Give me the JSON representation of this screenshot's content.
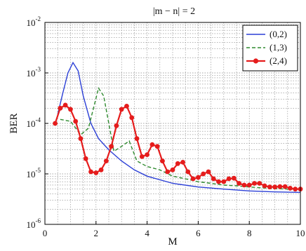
{
  "chart_data": {
    "type": "line",
    "title": "|m − n| = 2",
    "xlabel": "M",
    "ylabel": "BER",
    "xlim": [
      0,
      10
    ],
    "ylim": [
      1e-06,
      0.01
    ],
    "yscale": "log",
    "grid": true,
    "legend_position": "top-right",
    "x_ticks": [
      "0",
      "2",
      "4",
      "6",
      "8",
      "10"
    ],
    "y_ticks": [
      {
        "base": "10",
        "exp": "-6",
        "value": 1e-06
      },
      {
        "base": "10",
        "exp": "-5",
        "value": 1e-05
      },
      {
        "base": "10",
        "exp": "-4",
        "value": 0.0001
      },
      {
        "base": "10",
        "exp": "-3",
        "value": 0.001
      },
      {
        "base": "10",
        "exp": "-2",
        "value": 0.01
      }
    ],
    "series": [
      {
        "name": "(0,2)",
        "color": "#2b3fd6",
        "style": "solid",
        "x": [
          0.5,
          0.7,
          0.9,
          1.1,
          1.3,
          1.5,
          1.8,
          2.1,
          2.5,
          3.0,
          3.5,
          4.0,
          5.0,
          6.0,
          7.0,
          8.0,
          9.0,
          10.0
        ],
        "y": [
          0.00015,
          0.0004,
          0.001,
          0.0016,
          0.0011,
          0.00035,
          0.0001,
          5e-05,
          3e-05,
          1.8e-05,
          1.2e-05,
          9e-06,
          6.5e-06,
          5.5e-06,
          5e-06,
          4.6e-06,
          4.4e-06,
          4.3e-06
        ]
      },
      {
        "name": "(1,3)",
        "color": "#2f8a2f",
        "style": "dashed",
        "x": [
          0.6,
          1.0,
          1.4,
          1.7,
          1.9,
          2.1,
          2.3,
          2.5,
          2.7,
          3.0,
          3.3,
          3.6,
          4.0,
          4.5,
          5.0,
          5.5,
          6.0,
          6.5,
          7.0,
          7.5,
          8.0,
          8.5,
          9.0,
          9.5,
          10.0
        ],
        "y": [
          0.00012,
          0.00011,
          6e-05,
          8e-05,
          0.0002,
          0.0005,
          0.00035,
          0.0001,
          2.8e-05,
          3.5e-05,
          4.5e-05,
          1.8e-05,
          1.4e-05,
          1.2e-05,
          9e-06,
          8e-06,
          7e-06,
          6.5e-06,
          6e-06,
          5.8e-06,
          5.5e-06,
          5.3e-06,
          5.1e-06,
          5e-06,
          5e-06
        ]
      },
      {
        "name": "(2,4)",
        "color": "#e51c1c",
        "style": "solid-marker",
        "x": [
          0.4,
          0.6,
          0.8,
          1.0,
          1.2,
          1.4,
          1.6,
          1.8,
          2.0,
          2.2,
          2.4,
          2.6,
          2.8,
          3.0,
          3.2,
          3.4,
          3.6,
          3.8,
          4.0,
          4.2,
          4.4,
          4.6,
          4.8,
          5.0,
          5.2,
          5.4,
          5.6,
          5.8,
          6.0,
          6.2,
          6.4,
          6.6,
          6.8,
          7.0,
          7.2,
          7.4,
          7.6,
          7.8,
          8.0,
          8.2,
          8.4,
          8.6,
          8.8,
          9.0,
          9.2,
          9.4,
          9.6,
          9.8,
          10.0
        ],
        "y": [
          0.0001,
          0.0002,
          0.00023,
          0.00019,
          0.00011,
          5e-05,
          2e-05,
          1.1e-05,
          1.05e-05,
          1.2e-05,
          1.8e-05,
          3.5e-05,
          9e-05,
          0.00019,
          0.00022,
          0.00013,
          5e-05,
          2.2e-05,
          2.4e-05,
          3.8e-05,
          3.5e-05,
          1.8e-05,
          1.1e-05,
          1.2e-05,
          1.6e-05,
          1.7e-05,
          1.1e-05,
          8e-06,
          8.5e-06,
          1e-05,
          1.1e-05,
          8e-06,
          7e-06,
          7e-06,
          8e-06,
          8.2e-06,
          6.5e-06,
          6e-06,
          6e-06,
          6.5e-06,
          6.5e-06,
          5.8e-06,
          5.5e-06,
          5.5e-06,
          5.6e-06,
          5.6e-06,
          5.2e-06,
          5e-06,
          5e-06
        ]
      }
    ]
  }
}
